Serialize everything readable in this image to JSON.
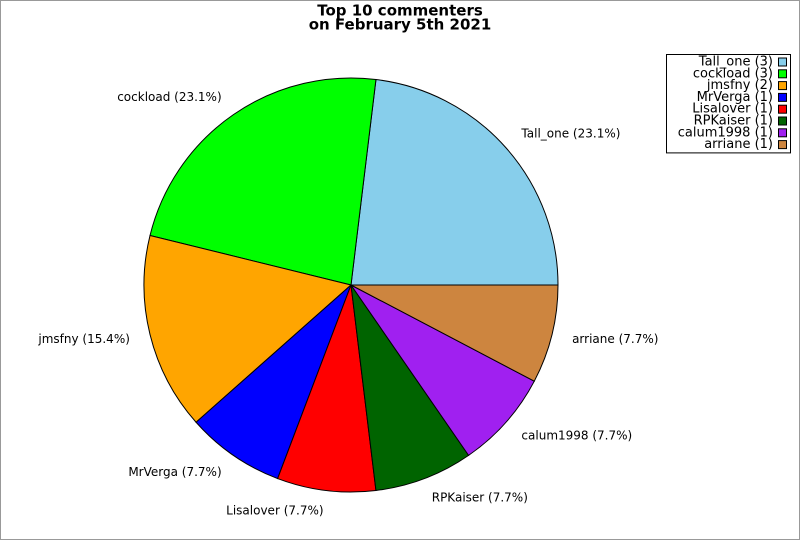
{
  "chart_data": {
    "type": "pie",
    "title": [
      "Top 10 commenters",
      "on February 5th 2021"
    ],
    "categories": [
      "Tall_one (3)",
      "cockload (3)",
      "jmsfny (2)",
      "MrVerga (1)",
      "Lisalover (1)",
      "RPKaiser (1)",
      "calum1998 (1)",
      "arriane (1)"
    ],
    "values": [
      23.1,
      23.1,
      15.4,
      7.7,
      7.7,
      7.7,
      7.7,
      7.7
    ],
    "value_labels": [
      "Tall_one (23.1%)",
      "cockload (23.1%)",
      "jmsfny (15.4%)",
      "MrVerga (7.7%)",
      "Lisalover (7.7%)",
      "RPKaiser (7.7%)",
      "calum1998 (7.7%)",
      "arriane (7.7%)"
    ],
    "colors": [
      "#87ceeb",
      "#00ff00",
      "#ffa500",
      "#0000ff",
      "#ff0000",
      "#006400",
      "#a020f0",
      "#cd853f"
    ],
    "legend": "top-right"
  }
}
